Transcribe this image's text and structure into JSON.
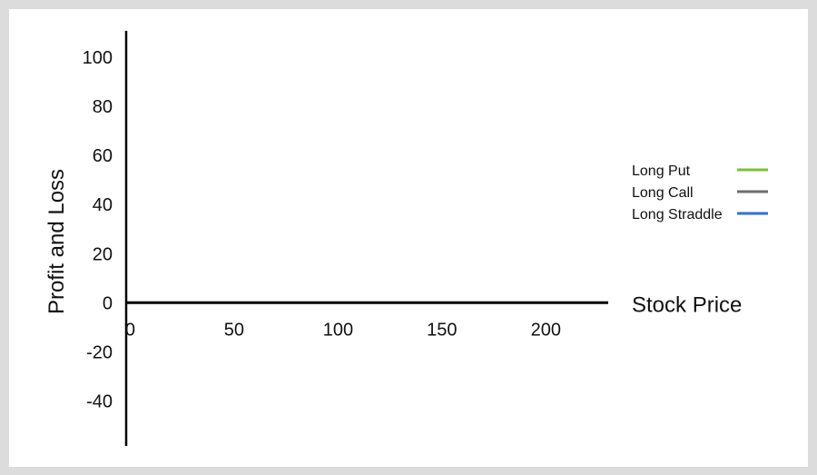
{
  "chart_data": {
    "type": "line",
    "xlabel": "Stock Price",
    "ylabel": "Profit and Loss",
    "xlim": [
      -12,
      230
    ],
    "ylim": [
      -58,
      113
    ],
    "x_ticks": [
      0,
      50,
      100,
      150,
      200
    ],
    "x_tick_labels": [
      "0",
      "50",
      "100",
      "150",
      "200"
    ],
    "y_ticks": [
      100,
      80,
      60,
      40,
      20,
      0,
      -20,
      -40
    ],
    "y_tick_labels": [
      "100",
      "80",
      "60",
      "40",
      "20",
      "0",
      "-20",
      "-40"
    ],
    "grid": false,
    "legend_position": "right",
    "series": [
      {
        "name": "Long Put",
        "color": "#7ac231",
        "values": []
      },
      {
        "name": "Long Call",
        "color": "#6e6e6e",
        "values": []
      },
      {
        "name": "Long Straddle",
        "color": "#2f6fe0",
        "values": []
      }
    ]
  }
}
